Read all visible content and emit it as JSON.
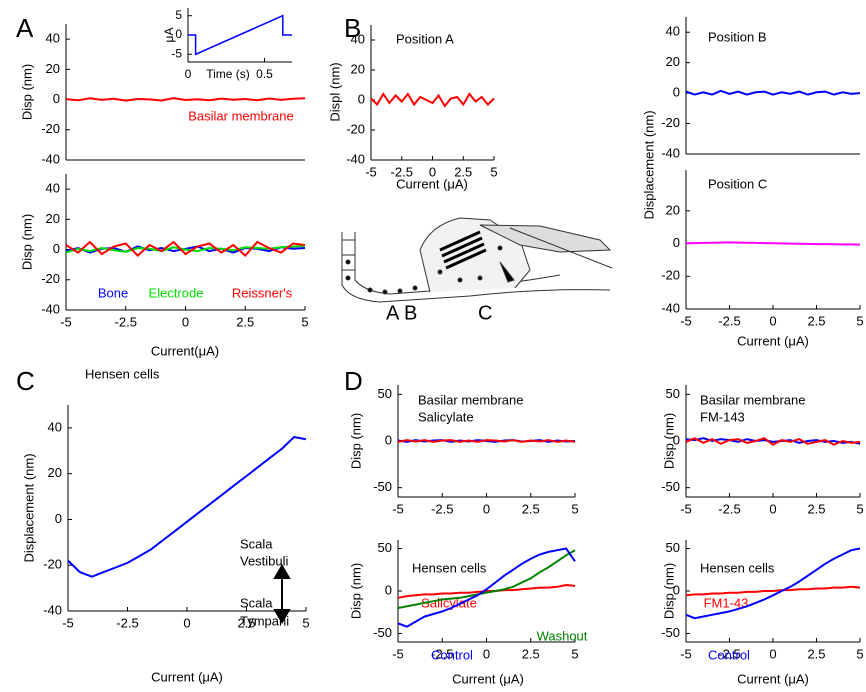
{
  "panel_labels": [
    "A",
    "B",
    "C",
    "D"
  ],
  "diagram_labels": [
    "A",
    "B",
    "C"
  ],
  "chart_data": [
    {
      "type": "line",
      "ylabel": "Disp (nm)",
      "ylim": [
        -40,
        50
      ],
      "yticks": [
        -40,
        -20,
        0,
        20,
        40
      ],
      "xlim": [
        -5,
        5
      ],
      "x": [
        -5,
        -4.5,
        -4,
        -3.5,
        -3,
        -2.5,
        -2,
        -1.5,
        -1,
        -0.5,
        0,
        0.5,
        1,
        1.5,
        2,
        2.5,
        3,
        3.5,
        4,
        4.5,
        5
      ],
      "series": [
        {
          "name": "Basilar membrane",
          "color": "#ff0000",
          "values": [
            0.3,
            -0.5,
            0.8,
            -0.2,
            0.5,
            -0.7,
            0.4,
            0.1,
            -0.6,
            0.9,
            -0.3,
            0.2,
            -0.5,
            0.6,
            -0.1,
            0.4,
            -0.4,
            0.7,
            -0.2,
            0.5,
            0.8
          ]
        }
      ]
    },
    {
      "type": "line",
      "ylabel": "μA",
      "xlabel": "Time (s)",
      "ylim": [
        -7,
        7
      ],
      "yticks": [
        -5,
        0,
        5
      ],
      "xlim": [
        0,
        0.68
      ],
      "xticks": [
        0,
        0.5
      ],
      "x": [
        0,
        0.05,
        0.05,
        0.62,
        0.62,
        0.68
      ],
      "series": [
        {
          "color": "#0000ff",
          "values": [
            0,
            0,
            -5,
            5,
            0,
            0
          ]
        }
      ]
    },
    {
      "type": "line",
      "ylabel": "Disp (nm)",
      "xlabel": "Current(μA)",
      "ylim": [
        -40,
        50
      ],
      "yticks": [
        -40,
        -20,
        0,
        20,
        40
      ],
      "xlim": [
        -5,
        5
      ],
      "xticks": [
        -5,
        -2.5,
        0,
        2.5,
        5
      ],
      "x": [
        -5,
        -4.5,
        -4,
        -3.5,
        -3,
        -2.5,
        -2,
        -1.5,
        -1,
        -0.5,
        0,
        0.5,
        1,
        1.5,
        2,
        2.5,
        3,
        3.5,
        4,
        4.5,
        5
      ],
      "series": [
        {
          "name": "Bone",
          "color": "#0000ff",
          "values": [
            -1,
            1,
            -2,
            0.5,
            1,
            -1.5,
            2,
            -0.5,
            1,
            -1,
            0.5,
            2,
            -1,
            0.5,
            -2,
            1,
            0.5,
            -1,
            1.5,
            0.5,
            1
          ]
        },
        {
          "name": "Electrode",
          "color": "#00dd00",
          "values": [
            -2,
            0.5,
            -1,
            1,
            -0.5,
            -1.5,
            1,
            0.5,
            -1,
            1.5,
            0,
            -1,
            1,
            0.5,
            -0.5,
            1.5,
            1,
            0.5,
            1.5,
            2,
            2.5
          ]
        },
        {
          "name": "Reissner's",
          "color": "#ff0000",
          "values": [
            3,
            -2,
            5,
            -3,
            2,
            4,
            -4,
            3,
            -1,
            5,
            -3,
            2,
            4,
            -2,
            3,
            -4,
            5,
            1,
            -2,
            4,
            3
          ]
        }
      ]
    },
    {
      "type": "line",
      "title": "Position A",
      "ylabel": "Displ (nm)",
      "xlabel": "Current (μA)",
      "ylim": [
        -40,
        50
      ],
      "yticks": [
        -40,
        -20,
        0,
        20,
        40
      ],
      "xlim": [
        -5,
        5
      ],
      "xticks": [
        -5,
        -2.5,
        0,
        2.5,
        5
      ],
      "x": [
        -5,
        -4.5,
        -4,
        -3.5,
        -3,
        -2.5,
        -2,
        -1.5,
        -1,
        -0.5,
        0,
        0.5,
        1,
        1.5,
        2,
        2.5,
        3,
        3.5,
        4,
        4.5,
        5
      ],
      "series": [
        {
          "color": "#ff0000",
          "values": [
            1,
            -3,
            4,
            -2,
            3,
            -1,
            4,
            -3,
            2,
            0,
            -2,
            3,
            -4,
            1,
            2,
            -3,
            4,
            -1,
            2,
            -3,
            1
          ]
        }
      ]
    },
    {
      "type": "line",
      "title": "Position B",
      "ylabel": "Displacement (nm)",
      "ylim": [
        -40,
        50
      ],
      "yticks": [
        -40,
        -20,
        0,
        20,
        40
      ],
      "xlim": [
        -5,
        5
      ],
      "x": [
        -5,
        -4.5,
        -4,
        -3.5,
        -3,
        -2.5,
        -2,
        -1.5,
        -1,
        -0.5,
        0,
        0.5,
        1,
        1.5,
        2,
        2.5,
        3,
        3.5,
        4,
        4.5,
        5
      ],
      "series": [
        {
          "color": "#0000ff",
          "values": [
            1,
            -1,
            0.5,
            -1,
            1.5,
            -0.5,
            1,
            -1,
            0.5,
            1,
            -1,
            0.5,
            -0.5,
            1,
            -1,
            0.5,
            1,
            -1,
            0.5,
            -0.5,
            0
          ]
        }
      ]
    },
    {
      "type": "line",
      "title": "Position C",
      "xlabel": "Current (μA)",
      "ylim": [
        -40,
        45
      ],
      "yticks": [
        -40,
        -20,
        0,
        20
      ],
      "xlim": [
        -5,
        5
      ],
      "xticks": [
        -5,
        -2.5,
        0,
        2.5,
        5
      ],
      "x": [
        -5,
        -4.5,
        -4,
        -3.5,
        -3,
        -2.5,
        -2,
        -1.5,
        -1,
        -0.5,
        0,
        0.5,
        1,
        1.5,
        2,
        2.5,
        3,
        3.5,
        4,
        4.5,
        5
      ],
      "series": [
        {
          "color": "#ff00ff",
          "values": [
            0.2,
            0.3,
            0.4,
            0.5,
            0.6,
            0.7,
            0.6,
            0.5,
            0.4,
            0.3,
            0.2,
            0.1,
            0,
            -0.1,
            -0.2,
            -0.3,
            -0.3,
            -0.4,
            -0.5,
            -0.5,
            -0.6
          ]
        }
      ]
    },
    {
      "type": "line",
      "title": "Hensen cells",
      "ylabel": "Displacement (nm)",
      "xlabel": "Current (μA)",
      "ylim": [
        -40,
        50
      ],
      "yticks": [
        -40,
        -20,
        0,
        20,
        40
      ],
      "xlim": [
        -5,
        5
      ],
      "xticks": [
        -5,
        -2.5,
        0,
        2.5,
        5
      ],
      "annotations": [
        "Scala",
        "Vestibuli",
        "Scala",
        "Tympani"
      ],
      "x": [
        -5,
        -4.5,
        -4,
        -3.5,
        -3,
        -2.5,
        -2,
        -1.5,
        -1,
        -0.5,
        0,
        0.5,
        1,
        1.5,
        2,
        2.5,
        3,
        3.5,
        4,
        4.5,
        5
      ],
      "series": [
        {
          "color": "#0000ff",
          "values": [
            -18,
            -23,
            -25,
            -23,
            -21,
            -19,
            -16,
            -13,
            -9,
            -5,
            -1,
            3,
            7,
            11,
            15,
            19,
            23,
            27,
            31,
            36,
            35
          ]
        }
      ]
    },
    {
      "type": "line",
      "title": "Basilar membrane",
      "subtitle": "Salicylate",
      "ylabel": "Disp (nm)",
      "ylim": [
        -60,
        60
      ],
      "yticks": [
        -50,
        0,
        50
      ],
      "xlim": [
        -5,
        5
      ],
      "xticks": [
        -5,
        -2.5,
        0,
        2.5,
        5
      ],
      "x": [
        -5,
        -4.5,
        -4,
        -3.5,
        -3,
        -2.5,
        -2,
        -1.5,
        -1,
        -0.5,
        0,
        0.5,
        1,
        1.5,
        2,
        2.5,
        3,
        3.5,
        4,
        4.5,
        5
      ],
      "series": [
        {
          "color": "#0000ff",
          "values": [
            0.5,
            -1,
            1,
            -0.5,
            0.5,
            1,
            -1,
            0.5,
            -0.5,
            1,
            0,
            -1,
            0.5,
            1,
            -0.5,
            0,
            1,
            -1,
            0.5,
            -0.5,
            0
          ]
        },
        {
          "color": "#ff0000",
          "values": [
            -1,
            1,
            -0.5,
            1,
            -1,
            0.5,
            1,
            -1,
            0.5,
            -1,
            1,
            0.5,
            -0.5,
            1,
            -1,
            0.5,
            -0.5,
            1,
            -1,
            0.5,
            -1
          ]
        }
      ]
    },
    {
      "type": "line",
      "title": "Basilar membrane",
      "subtitle": "FM-143",
      "ylabel": "Disp (nm)",
      "ylim": [
        -60,
        60
      ],
      "yticks": [
        -50,
        0,
        50
      ],
      "xlim": [
        -5,
        5
      ],
      "xticks": [
        -5,
        -2.5,
        0,
        2.5,
        5
      ],
      "x": [
        -5,
        -4.5,
        -4,
        -3.5,
        -3,
        -2.5,
        -2,
        -1.5,
        -1,
        -0.5,
        0,
        0.5,
        1,
        1.5,
        2,
        2.5,
        3,
        3.5,
        4,
        4.5,
        5
      ],
      "series": [
        {
          "color": "#0000ff",
          "values": [
            2,
            1,
            3,
            0,
            2,
            1,
            -1,
            2,
            0,
            1,
            -1,
            0,
            1,
            -2,
            0,
            1,
            -1,
            0,
            -2,
            -1,
            -3
          ]
        },
        {
          "color": "#ff0000",
          "values": [
            -1,
            3,
            -2,
            2,
            -3,
            1,
            2,
            -2,
            0,
            3,
            -4,
            1,
            -1,
            2,
            -3,
            -1,
            1,
            -4,
            0,
            -2,
            -1
          ]
        }
      ]
    },
    {
      "type": "line",
      "title": "Hensen cells",
      "ylabel": "Disp (nm)",
      "xlabel": "Current (μA)",
      "ylim": [
        -60,
        60
      ],
      "yticks": [
        -50,
        0,
        50
      ],
      "xlim": [
        -5,
        5
      ],
      "xticks": [
        -5,
        -2.5,
        0,
        2.5,
        5
      ],
      "x": [
        -5,
        -4.5,
        -4,
        -3.5,
        -3,
        -2.5,
        -2,
        -1.5,
        -1,
        -0.5,
        0,
        0.5,
        1,
        1.5,
        2,
        2.5,
        3,
        3.5,
        4,
        4.5,
        5
      ],
      "series": [
        {
          "name": "Salicylate",
          "color": "#ff0000",
          "values": [
            -8,
            -6,
            -5,
            -4,
            -4,
            -3,
            -3,
            -2,
            -2,
            -1,
            0,
            0,
            1,
            1,
            2,
            3,
            4,
            4,
            5,
            7,
            6
          ]
        },
        {
          "name": "Washout",
          "color": "#008000",
          "values": [
            -20,
            -18,
            -16,
            -14,
            -12,
            -10,
            -9,
            -8,
            -6,
            -4,
            -2,
            0,
            2,
            5,
            10,
            15,
            22,
            28,
            35,
            42,
            48
          ]
        },
        {
          "name": "Control",
          "color": "#0000ff",
          "values": [
            -38,
            -42,
            -36,
            -30,
            -27,
            -24,
            -20,
            -15,
            -10,
            -5,
            2,
            10,
            18,
            25,
            32,
            38,
            43,
            46,
            48,
            50,
            35
          ]
        }
      ]
    },
    {
      "type": "line",
      "title": "Hensen cells",
      "ylabel": "Disp (nm)",
      "xlabel": "Current (μA)",
      "ylim": [
        -60,
        60
      ],
      "yticks": [
        -50,
        0,
        50
      ],
      "xlim": [
        -5,
        5
      ],
      "xticks": [
        -5,
        -2.5,
        0,
        2.5,
        5
      ],
      "x": [
        -5,
        -4.5,
        -4,
        -3.5,
        -3,
        -2.5,
        -2,
        -1.5,
        -1,
        -0.5,
        0,
        0.5,
        1,
        1.5,
        2,
        2.5,
        3,
        3.5,
        4,
        4.5,
        5
      ],
      "series": [
        {
          "name": "FM1-43",
          "color": "#ff0000",
          "values": [
            -5,
            -4,
            -4,
            -3,
            -3,
            -2,
            -2,
            -1,
            -1,
            0,
            0,
            1,
            1,
            2,
            2,
            3,
            3,
            4,
            4,
            5,
            4
          ]
        },
        {
          "name": "Control",
          "color": "#0000ff",
          "values": [
            -28,
            -32,
            -30,
            -28,
            -26,
            -24,
            -21,
            -18,
            -14,
            -10,
            -5,
            0,
            5,
            11,
            18,
            25,
            32,
            38,
            43,
            48,
            50
          ]
        }
      ]
    }
  ]
}
